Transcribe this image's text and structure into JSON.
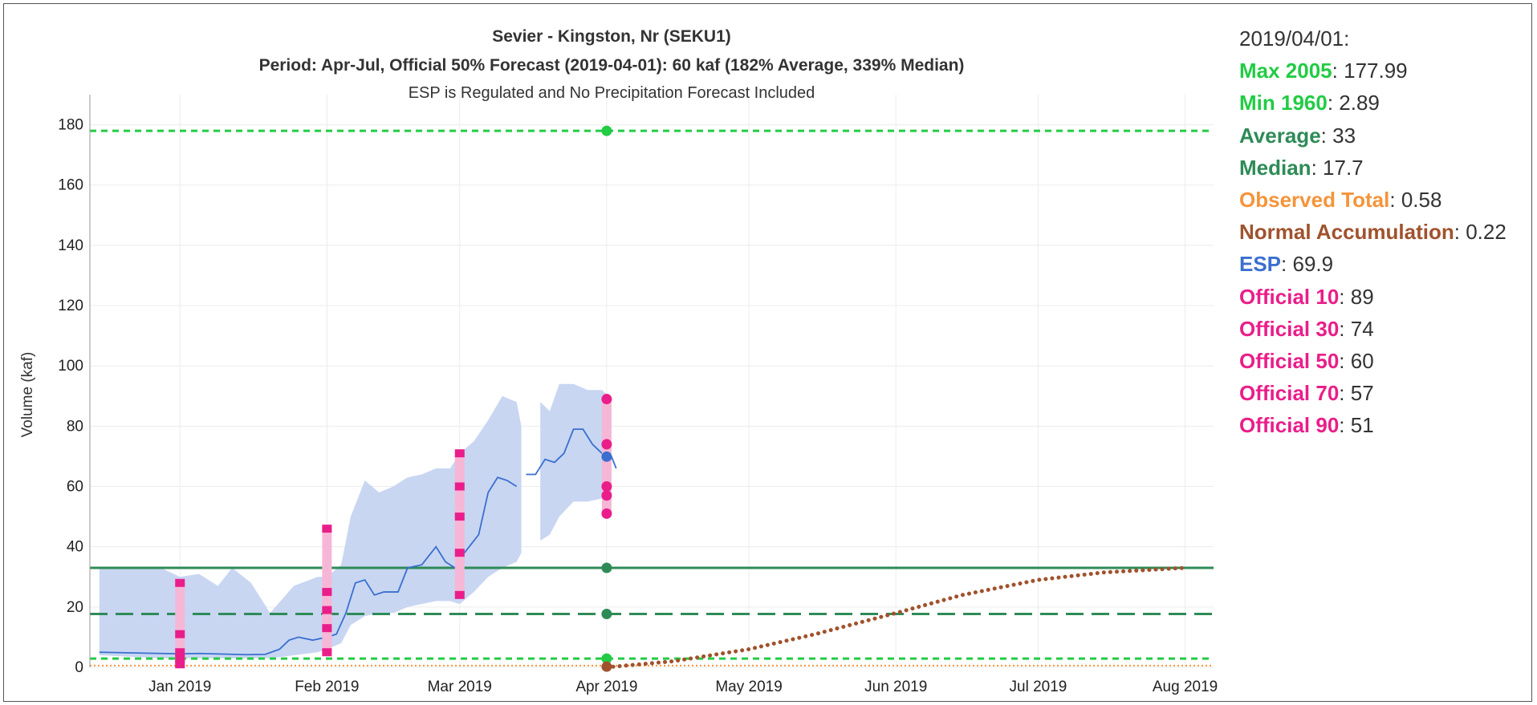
{
  "chart_data": {
    "type": "line",
    "title": "Sevier - Kingston, Nr (SEKU1)",
    "subtitle": "Period: Apr-Jul, Official 50% Forecast (2019-04-01): 60 kaf (182% Average, 339% Median)",
    "subtitle2": "ESP is Regulated and No Precipitation Forecast Included",
    "ylabel": "Volume (kaf)",
    "xlabel": "",
    "ylim": [
      0,
      190
    ],
    "xlim": [
      "2018-12-13",
      "2019-08-07"
    ],
    "grid": true,
    "x_ticks": [
      {
        "date": "2019-01-01",
        "label": "Jan 2019"
      },
      {
        "date": "2019-02-01",
        "label": "Feb 2019"
      },
      {
        "date": "2019-03-01",
        "label": "Mar 2019"
      },
      {
        "date": "2019-04-01",
        "label": "Apr 2019"
      },
      {
        "date": "2019-05-01",
        "label": "May 2019"
      },
      {
        "date": "2019-06-01",
        "label": "Jun 2019"
      },
      {
        "date": "2019-07-01",
        "label": "Jul 2019"
      },
      {
        "date": "2019-08-01",
        "label": "Aug 2019"
      }
    ],
    "y_ticks": [
      0,
      20,
      40,
      60,
      80,
      100,
      120,
      140,
      160,
      180
    ],
    "reference_lines": [
      {
        "name": "Max 2005",
        "value": 177.99,
        "color": "#22cc44",
        "dash": "short"
      },
      {
        "name": "Min 1960",
        "value": 2.89,
        "color": "#22cc44",
        "dash": "short"
      },
      {
        "name": "Average",
        "value": 33,
        "color": "#2e8b57",
        "dash": "solid"
      },
      {
        "name": "Median",
        "value": 17.7,
        "color": "#2e8b57",
        "dash": "long"
      },
      {
        "name": "Observed Total",
        "value": 0.58,
        "color": "#f5943a",
        "dash": "dot"
      }
    ],
    "esp_band": {
      "color": "#c8d6f2",
      "segments": [
        [
          {
            "x": "2018-12-15",
            "lo": 4,
            "hi": 33
          },
          {
            "x": "2018-12-28",
            "lo": 3,
            "hi": 33
          },
          {
            "x": "2019-01-01",
            "lo": 3,
            "hi": 30
          },
          {
            "x": "2019-01-05",
            "lo": 3,
            "hi": 31
          },
          {
            "x": "2019-01-09",
            "lo": 3,
            "hi": 27
          },
          {
            "x": "2019-01-12",
            "lo": 3,
            "hi": 33
          },
          {
            "x": "2019-01-16",
            "lo": 3,
            "hi": 28
          },
          {
            "x": "2019-01-20",
            "lo": 3,
            "hi": 18
          },
          {
            "x": "2019-01-25",
            "lo": 4,
            "hi": 27
          },
          {
            "x": "2019-01-30",
            "lo": 5,
            "hi": 30
          },
          {
            "x": "2019-02-01",
            "lo": 6,
            "hi": 30
          },
          {
            "x": "2019-02-04",
            "lo": 8,
            "hi": 34
          },
          {
            "x": "2019-02-06",
            "lo": 14,
            "hi": 50
          },
          {
            "x": "2019-02-09",
            "lo": 17,
            "hi": 62
          },
          {
            "x": "2019-02-12",
            "lo": 18,
            "hi": 58
          },
          {
            "x": "2019-02-15",
            "lo": 18,
            "hi": 60
          },
          {
            "x": "2019-02-18",
            "lo": 20,
            "hi": 63
          },
          {
            "x": "2019-02-21",
            "lo": 21,
            "hi": 64
          },
          {
            "x": "2019-02-24",
            "lo": 22,
            "hi": 66
          },
          {
            "x": "2019-02-27",
            "lo": 22,
            "hi": 66
          },
          {
            "x": "2019-03-01",
            "lo": 21,
            "hi": 71
          },
          {
            "x": "2019-03-04",
            "lo": 25,
            "hi": 75
          },
          {
            "x": "2019-03-07",
            "lo": 30,
            "hi": 82
          },
          {
            "x": "2019-03-10",
            "lo": 33,
            "hi": 90
          },
          {
            "x": "2019-03-13",
            "lo": 35,
            "hi": 88
          },
          {
            "x": "2019-03-14",
            "lo": 38,
            "hi": 80
          }
        ],
        [
          {
            "x": "2019-03-18",
            "lo": 42,
            "hi": 88
          },
          {
            "x": "2019-03-20",
            "lo": 44,
            "hi": 85
          },
          {
            "x": "2019-03-22",
            "lo": 50,
            "hi": 94
          },
          {
            "x": "2019-03-25",
            "lo": 55,
            "hi": 94
          },
          {
            "x": "2019-03-28",
            "lo": 55,
            "hi": 92
          },
          {
            "x": "2019-03-31",
            "lo": 56,
            "hi": 92
          },
          {
            "x": "2019-04-02",
            "lo": 56,
            "hi": 89
          }
        ]
      ]
    },
    "series": [
      {
        "name": "ESP",
        "color": "#3a6fcf",
        "segments": [
          [
            {
              "x": "2018-12-15",
              "y": 5
            },
            {
              "x": "2018-12-28",
              "y": 4.6
            },
            {
              "x": "2019-01-01",
              "y": 4.5
            },
            {
              "x": "2019-01-05",
              "y": 4.6
            },
            {
              "x": "2019-01-10",
              "y": 4.4
            },
            {
              "x": "2019-01-15",
              "y": 4.2
            },
            {
              "x": "2019-01-19",
              "y": 4.3
            },
            {
              "x": "2019-01-22",
              "y": 6
            },
            {
              "x": "2019-01-24",
              "y": 9
            },
            {
              "x": "2019-01-26",
              "y": 10
            },
            {
              "x": "2019-01-29",
              "y": 9
            },
            {
              "x": "2019-02-01",
              "y": 10
            },
            {
              "x": "2019-02-03",
              "y": 11
            },
            {
              "x": "2019-02-05",
              "y": 18
            },
            {
              "x": "2019-02-07",
              "y": 28
            },
            {
              "x": "2019-02-09",
              "y": 29
            },
            {
              "x": "2019-02-11",
              "y": 24
            },
            {
              "x": "2019-02-13",
              "y": 25
            },
            {
              "x": "2019-02-16",
              "y": 25
            },
            {
              "x": "2019-02-18",
              "y": 33
            },
            {
              "x": "2019-02-21",
              "y": 34
            },
            {
              "x": "2019-02-24",
              "y": 40
            },
            {
              "x": "2019-02-26",
              "y": 35
            },
            {
              "x": "2019-02-28",
              "y": 33
            }
          ],
          [
            {
              "x": "2019-03-01",
              "y": 36
            },
            {
              "x": "2019-03-03",
              "y": 40
            },
            {
              "x": "2019-03-05",
              "y": 44
            },
            {
              "x": "2019-03-07",
              "y": 58
            },
            {
              "x": "2019-03-09",
              "y": 63
            },
            {
              "x": "2019-03-11",
              "y": 62
            },
            {
              "x": "2019-03-13",
              "y": 60
            }
          ],
          [
            {
              "x": "2019-03-15",
              "y": 64
            },
            {
              "x": "2019-03-17",
              "y": 64
            },
            {
              "x": "2019-03-19",
              "y": 69
            },
            {
              "x": "2019-03-21",
              "y": 68
            },
            {
              "x": "2019-03-23",
              "y": 71
            },
            {
              "x": "2019-03-25",
              "y": 79
            },
            {
              "x": "2019-03-27",
              "y": 79
            },
            {
              "x": "2019-03-29",
              "y": 74
            },
            {
              "x": "2019-03-31",
              "y": 71
            },
            {
              "x": "2019-04-02",
              "y": 70
            },
            {
              "x": "2019-04-03",
              "y": 66
            }
          ]
        ]
      },
      {
        "name": "Normal Accumulation",
        "color": "#a0522d",
        "style": "dotted",
        "points": [
          {
            "x": "2019-04-01",
            "y": 0
          },
          {
            "x": "2019-04-15",
            "y": 2
          },
          {
            "x": "2019-05-01",
            "y": 6
          },
          {
            "x": "2019-05-15",
            "y": 11
          },
          {
            "x": "2019-06-01",
            "y": 18
          },
          {
            "x": "2019-06-15",
            "y": 24
          },
          {
            "x": "2019-07-01",
            "y": 29
          },
          {
            "x": "2019-07-15",
            "y": 31.5
          },
          {
            "x": "2019-08-01",
            "y": 33
          }
        ]
      }
    ],
    "official_forecasts": [
      {
        "x": "2019-01-01",
        "values": [
          28,
          11,
          5,
          3,
          1
        ]
      },
      {
        "x": "2019-02-01",
        "values": [
          46,
          25,
          19,
          13,
          5
        ]
      },
      {
        "x": "2019-03-01",
        "values": [
          71,
          60,
          50,
          38,
          24
        ]
      },
      {
        "x": "2019-04-01",
        "values": [
          89,
          74,
          60,
          57,
          51
        ]
      }
    ],
    "official_color": "#ea1e8a",
    "official_bar_color": "#f6b7d6",
    "markers_apr1": [
      {
        "name": "Max 2005",
        "value": 177.99,
        "color": "#22cc44"
      },
      {
        "name": "Average",
        "value": 33,
        "color": "#2e8b57"
      },
      {
        "name": "Median",
        "value": 17.7,
        "color": "#2e8b57"
      },
      {
        "name": "Min 1960",
        "value": 2.89,
        "color": "#22cc44"
      },
      {
        "name": "Normal Accumulation",
        "value": 0.22,
        "color": "#a0522d"
      },
      {
        "name": "ESP",
        "value": 69.9,
        "color": "#3a6fcf"
      }
    ]
  },
  "legend": {
    "date": "2019/04/01:",
    "items": [
      {
        "label": "Max 2005",
        "value": "177.99",
        "color": "#22cc44"
      },
      {
        "label": "Min 1960",
        "value": "2.89",
        "color": "#22cc44"
      },
      {
        "label": "Average",
        "value": "33",
        "color": "#2e8b57"
      },
      {
        "label": "Median",
        "value": "17.7",
        "color": "#2e8b57"
      },
      {
        "label": "Observed Total",
        "value": "0.58",
        "color": "#f5943a"
      },
      {
        "label": "Normal Accumulation",
        "value": "0.22",
        "color": "#a0522d"
      },
      {
        "label": "ESP",
        "value": "69.9",
        "color": "#3a6fcf"
      },
      {
        "label": "Official 10",
        "value": "89",
        "color": "#ea1e8a"
      },
      {
        "label": "Official 30",
        "value": "74",
        "color": "#ea1e8a"
      },
      {
        "label": "Official 50",
        "value": "60",
        "color": "#ea1e8a"
      },
      {
        "label": "Official 70",
        "value": "57",
        "color": "#ea1e8a"
      },
      {
        "label": "Official 90",
        "value": "51",
        "color": "#ea1e8a"
      }
    ]
  }
}
